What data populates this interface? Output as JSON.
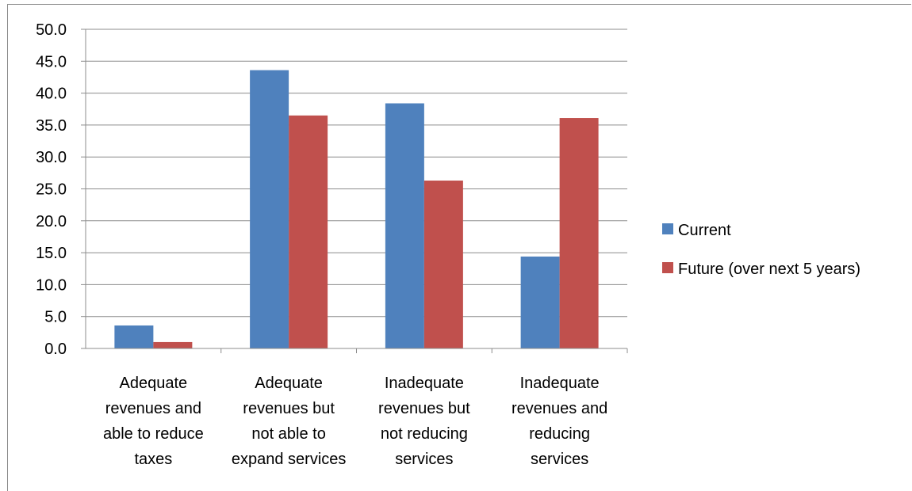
{
  "chart_data": {
    "type": "bar",
    "categories": [
      [
        "Adequate",
        "revenues and",
        "able to reduce",
        "taxes"
      ],
      [
        "Adequate",
        "revenues but",
        "not able to",
        "expand services"
      ],
      [
        "Inadequate",
        "revenues but",
        "not reducing",
        "services"
      ],
      [
        "Inadequate",
        "revenues and",
        "reducing",
        "services"
      ]
    ],
    "series": [
      {
        "name": "Current",
        "color": "#4f81bd",
        "values": [
          3.6,
          43.6,
          38.4,
          14.4
        ]
      },
      {
        "name": "Future (over next 5 years)",
        "color": "#c0504d",
        "values": [
          1.0,
          36.5,
          26.3,
          36.1
        ]
      }
    ],
    "ylim": [
      0,
      50
    ],
    "ytick_step": 5,
    "ytick_labels": [
      "0.0",
      "5.0",
      "10.0",
      "15.0",
      "20.0",
      "25.0",
      "30.0",
      "35.0",
      "40.0",
      "45.0",
      "50.0"
    ],
    "grid": true,
    "legend_position": "right",
    "title": "",
    "xlabel": "",
    "ylabel": ""
  }
}
